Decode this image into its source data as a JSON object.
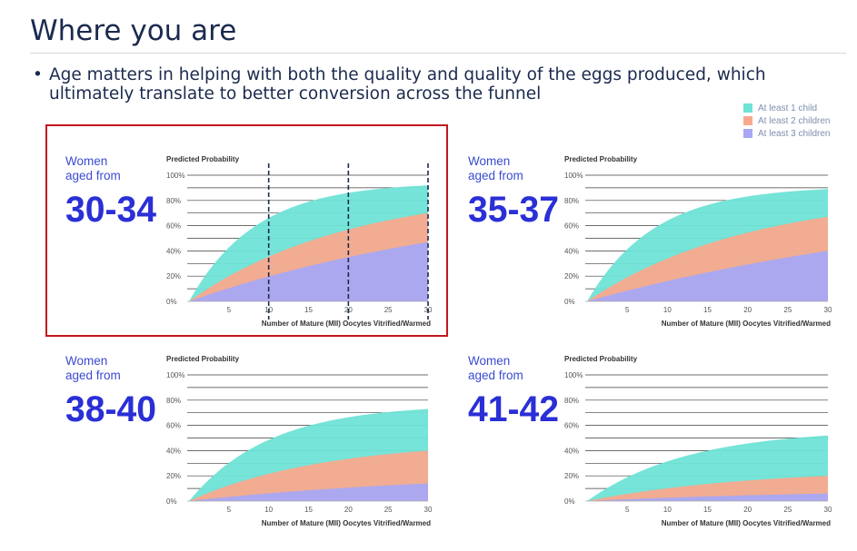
{
  "slide": {
    "title": "Where you are",
    "bullet": "Age matters in helping with both the quality and quality of the eggs produced, which ultimately translate to better conversion across the funnel"
  },
  "legend": [
    {
      "label": "At least 1 child",
      "color": "#6fe3d6"
    },
    {
      "label": "At least 2 children",
      "color": "#f8a98e"
    },
    {
      "label": "At least 3 children",
      "color": "#a8a8f5"
    }
  ],
  "colors": {
    "highlight_border": "#c4171d",
    "age_number": "#2a2fd6",
    "age_label": "#3a4bd0",
    "axis_text": "#555555"
  },
  "chart_data": [
    {
      "type": "area",
      "panel_label_line1": "Women",
      "panel_label_line2": "aged from",
      "age_range": "30-34",
      "highlighted": true,
      "markers": [
        10,
        20,
        30
      ],
      "title": "Predicted Probability",
      "xlabel": "Number of Mature (MII) Oocytes Vitrified/Warmed",
      "x_ticks": [
        "5",
        "10",
        "15",
        "20",
        "25",
        "30"
      ],
      "y_ticks": [
        "0%",
        "20%",
        "40%",
        "60%",
        "80%",
        "100%"
      ],
      "xlim": [
        0,
        30
      ],
      "ylim": [
        0,
        100
      ],
      "series": [
        {
          "name": "At least 1 child",
          "end": 92,
          "k": 0.12
        },
        {
          "name": "At least 2 children",
          "end": 70,
          "k": 0.05
        },
        {
          "name": "At least 3 children",
          "end": 47,
          "k": 0.025
        }
      ]
    },
    {
      "type": "area",
      "panel_label_line1": "Women",
      "panel_label_line2": "aged from",
      "age_range": "35-37",
      "highlighted": false,
      "markers": [],
      "title": "Predicted Probability",
      "xlabel": "Number of Mature (MII) Oocytes Vitrified/Warmed",
      "x_ticks": [
        "5",
        "10",
        "15",
        "20",
        "25",
        "30"
      ],
      "y_ticks": [
        "0%",
        "20%",
        "40%",
        "60%",
        "80%",
        "100%"
      ],
      "xlim": [
        0,
        30
      ],
      "ylim": [
        0,
        100
      ],
      "series": [
        {
          "name": "At least 1 child",
          "end": 89,
          "k": 0.12
        },
        {
          "name": "At least 2 children",
          "end": 67,
          "k": 0.05
        },
        {
          "name": "At least 3 children",
          "end": 40,
          "k": 0.02
        }
      ]
    },
    {
      "type": "area",
      "panel_label_line1": "Women",
      "panel_label_line2": "aged from",
      "age_range": "38-40",
      "highlighted": false,
      "markers": [],
      "title": "Predicted Probability",
      "xlabel": "Number of Mature (MII) Oocytes Vitrified/Warmed",
      "x_ticks": [
        "5",
        "10",
        "15",
        "20",
        "25",
        "30"
      ],
      "y_ticks": [
        "0%",
        "20%",
        "40%",
        "60%",
        "80%",
        "100%"
      ],
      "xlim": [
        0,
        30
      ],
      "ylim": [
        0,
        100
      ],
      "series": [
        {
          "name": "At least 1 child",
          "end": 73,
          "k": 0.1
        },
        {
          "name": "At least 2 children",
          "end": 40,
          "k": 0.06
        },
        {
          "name": "At least 3 children",
          "end": 14,
          "k": 0.03
        }
      ]
    },
    {
      "type": "area",
      "panel_label_line1": "Women",
      "panel_label_line2": "aged from",
      "age_range": "41-42",
      "highlighted": false,
      "markers": [],
      "title": "Predicted Probability",
      "xlabel": "Number of Mature (MII) Oocytes Vitrified/Warmed",
      "x_ticks": [
        "5",
        "10",
        "15",
        "20",
        "25",
        "30"
      ],
      "y_ticks": [
        "0%",
        "20%",
        "40%",
        "60%",
        "80%",
        "100%"
      ],
      "xlim": [
        0,
        30
      ],
      "ylim": [
        0,
        100
      ],
      "series": [
        {
          "name": "At least 1 child",
          "end": 52,
          "k": 0.08
        },
        {
          "name": "At least 2 children",
          "end": 20,
          "k": 0.05
        },
        {
          "name": "At least 3 children",
          "end": 6,
          "k": 0.03
        }
      ]
    }
  ]
}
